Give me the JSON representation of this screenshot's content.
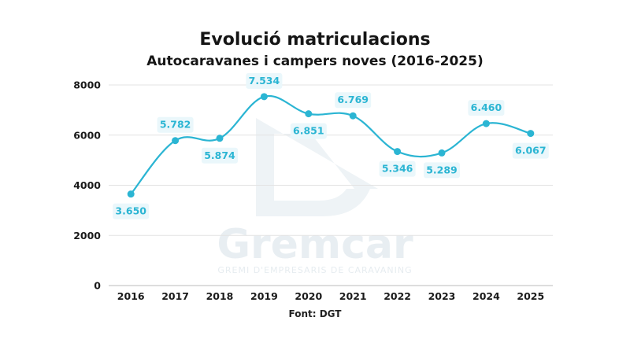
{
  "chart_data": {
    "type": "line",
    "title": "Evolució matriculacions",
    "subtitle": "Autocaravanes i campers noves (2016-2025)",
    "categories": [
      "2016",
      "2017",
      "2018",
      "2019",
      "2020",
      "2021",
      "2022",
      "2023",
      "2024",
      "2025"
    ],
    "values": [
      3650,
      5782,
      5874,
      7534,
      6851,
      6769,
      5346,
      5289,
      6460,
      6067
    ],
    "data_labels": [
      "3.650",
      "5.782",
      "5.874",
      "7.534",
      "6.851",
      "6.769",
      "5.346",
      "5.289",
      "6.460",
      "6.067"
    ],
    "yticks": [
      "0",
      "2000",
      "4000",
      "6000",
      "8000"
    ],
    "ylim": [
      0,
      8000
    ],
    "grid": true,
    "line_color": "#2bb5d3",
    "label_bg": "#eaf7fb"
  },
  "source": "Font: DGT",
  "watermark": {
    "brand": "Gremcar",
    "tagline": "GREMI D'EMPRESARIS DE CARAVANING"
  }
}
